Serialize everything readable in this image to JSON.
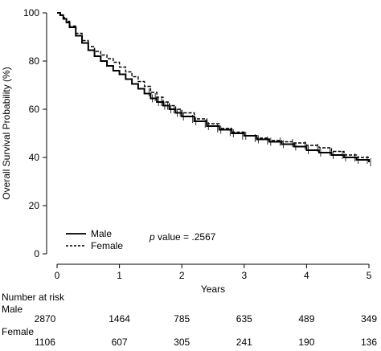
{
  "chart_data": {
    "type": "line",
    "title": "",
    "xlabel": "Years",
    "ylabel": "Overall Survival Probability (%)",
    "xlim": [
      0,
      5
    ],
    "ylim": [
      0,
      100
    ],
    "x_ticks": [
      0,
      1,
      2,
      3,
      4,
      5
    ],
    "y_ticks": [
      0,
      20,
      40,
      60,
      80,
      100
    ],
    "grid": false,
    "legend_position": "bottom-left",
    "annotation": {
      "italic": "p",
      "text": " value = .2567"
    },
    "series": [
      {
        "name": "Male",
        "line_style": "solid",
        "x": [
          0,
          0.05,
          0.1,
          0.15,
          0.2,
          0.3,
          0.4,
          0.5,
          0.6,
          0.7,
          0.8,
          0.9,
          1.0,
          1.1,
          1.2,
          1.3,
          1.4,
          1.5,
          1.6,
          1.7,
          1.8,
          1.9,
          2.0,
          2.2,
          2.4,
          2.6,
          2.8,
          3.0,
          3.2,
          3.4,
          3.6,
          3.8,
          4.0,
          4.2,
          4.4,
          4.6,
          4.8,
          5.0
        ],
        "y": [
          100,
          99,
          97.5,
          96,
          94,
          90.5,
          87.5,
          84.5,
          82,
          80,
          78,
          76,
          74.5,
          72.5,
          70.5,
          68.5,
          66.5,
          64.5,
          63,
          61.5,
          60,
          58.5,
          57,
          55,
          53,
          51.5,
          50,
          49,
          47.5,
          46.5,
          45.5,
          44.5,
          43,
          42,
          41,
          40,
          39,
          38
        ]
      },
      {
        "name": "Female",
        "line_style": "dashed",
        "x": [
          0,
          0.05,
          0.1,
          0.15,
          0.2,
          0.3,
          0.4,
          0.5,
          0.6,
          0.7,
          0.8,
          0.9,
          1.0,
          1.1,
          1.2,
          1.3,
          1.4,
          1.5,
          1.6,
          1.7,
          1.8,
          1.9,
          2.0,
          2.2,
          2.4,
          2.6,
          2.8,
          3.0,
          3.2,
          3.4,
          3.6,
          3.8,
          4.0,
          4.2,
          4.4,
          4.6,
          4.8,
          5.0
        ],
        "y": [
          100,
          99.2,
          98,
          96.5,
          94.5,
          91.5,
          88.5,
          86,
          84,
          82.5,
          81,
          79.5,
          77.5,
          75.5,
          73.5,
          71.5,
          69.5,
          67,
          65,
          63,
          61.5,
          60,
          58.5,
          56,
          54,
          52,
          50.5,
          49,
          48,
          47,
          46.5,
          46,
          45,
          44,
          42.5,
          41,
          40,
          39
        ]
      }
    ],
    "risk_table": {
      "title": "Number at risk",
      "times": [
        0,
        1,
        2,
        3,
        4,
        5
      ],
      "rows": [
        {
          "label": "Male",
          "counts": [
            "2870",
            "1464",
            "785",
            "635",
            "489",
            "349"
          ]
        },
        {
          "label": "Female",
          "counts": [
            "1106",
            "607",
            "305",
            "241",
            "190",
            "136"
          ]
        }
      ]
    }
  }
}
